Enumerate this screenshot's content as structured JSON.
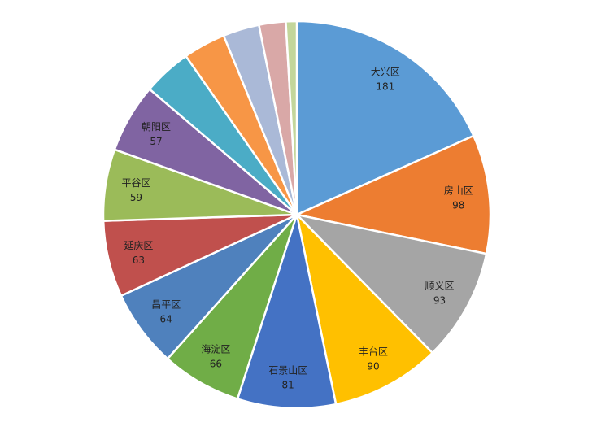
{
  "chart_data": {
    "type": "pie",
    "title": "",
    "slices": [
      {
        "label": "大兴区",
        "value": 181,
        "color": "#5B9BD5",
        "show_label": true
      },
      {
        "label": "房山区",
        "value": 98,
        "color": "#ED7D31",
        "show_label": true
      },
      {
        "label": "顺义区",
        "value": 93,
        "color": "#A5A5A5",
        "show_label": true
      },
      {
        "label": "丰台区",
        "value": 90,
        "color": "#FFC000",
        "show_label": true
      },
      {
        "label": "石景山区",
        "value": 81,
        "color": "#4472C4",
        "show_label": true
      },
      {
        "label": "海淀区",
        "value": 66,
        "color": "#70AD47",
        "show_label": true
      },
      {
        "label": "昌平区",
        "value": 64,
        "color": "#4F81BD",
        "show_label": true
      },
      {
        "label": "延庆区",
        "value": 63,
        "color": "#C0504D",
        "show_label": true
      },
      {
        "label": "平谷区",
        "value": 59,
        "color": "#9BBB59",
        "show_label": true
      },
      {
        "label": "朝阳区",
        "value": 57,
        "color": "#8064A2",
        "show_label": true
      },
      {
        "label": "",
        "value": 40,
        "color": "#4BACC6",
        "show_label": false
      },
      {
        "label": "",
        "value": 35,
        "color": "#F79646",
        "show_label": false
      },
      {
        "label": "",
        "value": 30,
        "color": "#AAB9D7",
        "show_label": false
      },
      {
        "label": "",
        "value": 22,
        "color": "#D9A8A7",
        "show_label": false
      },
      {
        "label": "",
        "value": 9,
        "color": "#C3D69B",
        "show_label": false
      }
    ]
  }
}
